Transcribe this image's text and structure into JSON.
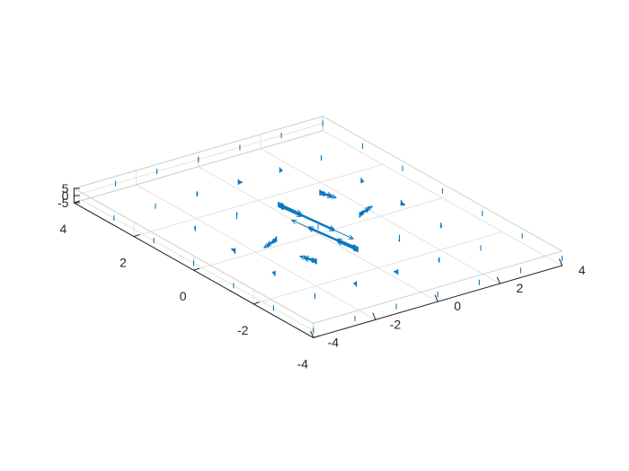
{
  "chart_data": {
    "type": "quiver3",
    "title": "",
    "xlabel": "",
    "ylabel": "",
    "zlabel": "",
    "xlim": [
      -4,
      4
    ],
    "ylim": [
      -4,
      4
    ],
    "zlim": [
      -5,
      5
    ],
    "xticks": [
      -4,
      -2,
      0,
      2,
      4
    ],
    "yticks": [
      -4,
      -2,
      0,
      2,
      4
    ],
    "zticks": [
      -5,
      0,
      5
    ],
    "grid": true,
    "box": true,
    "series_color": "#0072BD",
    "grid_points": [
      -4,
      -2.6667,
      -1.3333,
      0,
      1.3333,
      2.6667,
      4
    ],
    "z_levels": [
      -4,
      -2.6667,
      -1.3333,
      0,
      1.3333,
      2.6667,
      4
    ],
    "vector_field": "radial-shear",
    "vector_scale": 1.0,
    "largest_vectors": [
      {
        "x": 1.3333,
        "y": 0,
        "u": -2.2,
        "v": 0.3
      },
      {
        "x": -1.3333,
        "y": 0,
        "u": 1.9,
        "v": -0.3
      },
      {
        "x": 0,
        "y": 1.3333,
        "u": 0.2,
        "v": 0.6
      },
      {
        "x": 0,
        "y": -1.3333,
        "u": -0.2,
        "v": -0.6
      }
    ]
  }
}
